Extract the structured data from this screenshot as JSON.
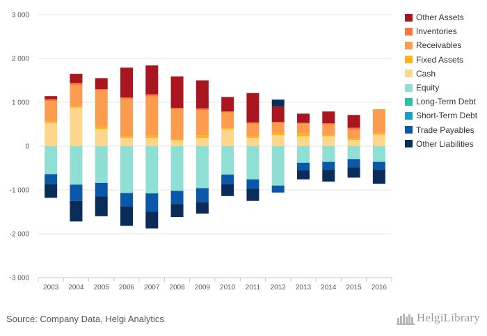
{
  "chart_data": {
    "type": "bar",
    "stacked": true,
    "categories": [
      "2003",
      "2004",
      "2005",
      "2006",
      "2007",
      "2008",
      "2009",
      "2010",
      "2011",
      "2012",
      "2013",
      "2014",
      "2015",
      "2016"
    ],
    "ylim": [
      -3000,
      3000
    ],
    "yticks": [
      -3000,
      -2000,
      -1000,
      0,
      1000,
      2000,
      3000
    ],
    "ytick_labels": [
      "-3 000",
      "-2 000",
      "-1 000",
      "0",
      "1 000",
      "2 000",
      "3 000"
    ],
    "grid": true,
    "legend_position": "right",
    "positive_series": [
      {
        "name": "Cash",
        "color": "#fdd68c",
        "values": [
          530,
          880,
          390,
          190,
          190,
          130,
          190,
          380,
          190,
          250,
          220,
          220,
          140,
          260
        ]
      },
      {
        "name": "Fixed Assets",
        "color": "#fbb613",
        "values": [
          30,
          30,
          60,
          40,
          50,
          20,
          60,
          30,
          40,
          60,
          70,
          40,
          30,
          30
        ]
      },
      {
        "name": "Receivables",
        "color": "#fc9c4e",
        "values": [
          470,
          480,
          820,
          850,
          890,
          690,
          570,
          360,
          280,
          220,
          220,
          230,
          200,
          540
        ]
      },
      {
        "name": "Inventories",
        "color": "#f8763a",
        "values": [
          40,
          50,
          30,
          30,
          50,
          30,
          40,
          20,
          30,
          20,
          20,
          30,
          50,
          10
        ]
      },
      {
        "name": "Other Assets",
        "color": "#a9161f",
        "values": [
          70,
          210,
          250,
          680,
          660,
          720,
          640,
          330,
          670,
          350,
          210,
          270,
          290,
          0
        ]
      },
      {
        "name": "Other Liabilities",
        "color": "#092d58",
        "values": [
          0,
          0,
          0,
          0,
          0,
          0,
          0,
          0,
          0,
          160,
          0,
          0,
          0,
          0
        ]
      }
    ],
    "negative_series": [
      {
        "name": "Equity",
        "color": "#8fdfd5",
        "values": [
          -640,
          -880,
          -840,
          -1070,
          -1080,
          -1020,
          -960,
          -650,
          -760,
          -900,
          -380,
          -360,
          -300,
          -360
        ]
      },
      {
        "name": "Long-Term Debt",
        "color": "#26bfb0",
        "values": [
          0,
          0,
          0,
          0,
          0,
          0,
          0,
          0,
          0,
          0,
          0,
          0,
          0,
          0
        ]
      },
      {
        "name": "Short-Term Debt",
        "color": "#14a1c8",
        "values": [
          0,
          0,
          0,
          0,
          0,
          0,
          0,
          0,
          0,
          0,
          0,
          0,
          0,
          0
        ]
      },
      {
        "name": "Trade Payables",
        "color": "#0a58a9",
        "values": [
          -230,
          -370,
          -310,
          -310,
          -420,
          -300,
          -320,
          -220,
          -210,
          -160,
          -170,
          -180,
          -180,
          -180
        ]
      },
      {
        "name": "Other Liabilities",
        "color": "#092d58",
        "values": [
          -310,
          -470,
          -450,
          -440,
          -380,
          -300,
          -260,
          -270,
          -280,
          0,
          -210,
          -270,
          -240,
          -320
        ]
      }
    ]
  },
  "legend": [
    {
      "name": "Other Assets",
      "color": "#a9161f"
    },
    {
      "name": "Inventories",
      "color": "#f8763a"
    },
    {
      "name": "Receivables",
      "color": "#fc9c4e"
    },
    {
      "name": "Fixed Assets",
      "color": "#fbb613"
    },
    {
      "name": "Cash",
      "color": "#fdd68c"
    },
    {
      "name": "Equity",
      "color": "#8fdfd5"
    },
    {
      "name": "Long-Term Debt",
      "color": "#26bfb0"
    },
    {
      "name": "Short-Term Debt",
      "color": "#14a1c8"
    },
    {
      "name": "Trade Payables",
      "color": "#0a58a9"
    },
    {
      "name": "Other Liabilities",
      "color": "#092d58"
    }
  ],
  "footer": {
    "source": "Source: Company Data, Helgi Analytics",
    "brand": "HelgiLibrary"
  }
}
